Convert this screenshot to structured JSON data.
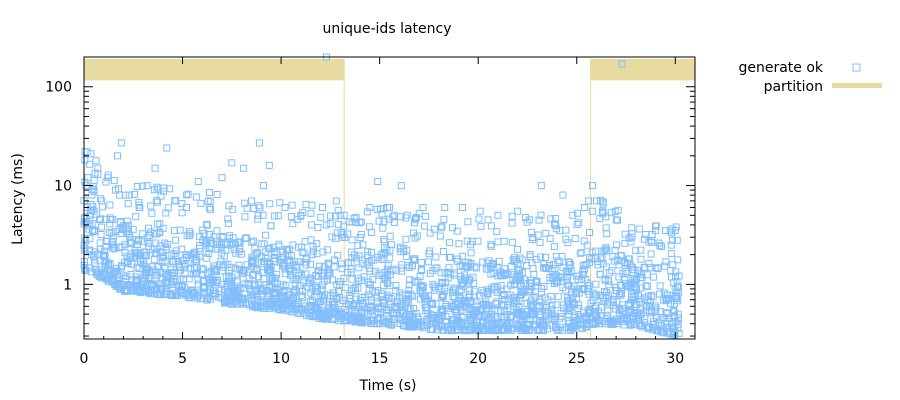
{
  "chart_data": {
    "type": "scatter",
    "title": "unique-ids latency",
    "xlabel": "Time (s)",
    "ylabel": "Latency (ms)",
    "xlim": [
      0,
      31
    ],
    "ylim": [
      0.28,
      200
    ],
    "yscale": "log",
    "xticks": [
      0,
      5,
      10,
      15,
      20,
      25,
      30
    ],
    "yticks": [
      1,
      10,
      100
    ],
    "grid": false,
    "legend_position": "top-right-outside",
    "series": [
      {
        "name": "generate ok",
        "marker": "hollow-square",
        "color": "#82BEFF",
        "points": [
          [
            0.05,
            22
          ],
          [
            0.1,
            10
          ],
          [
            0.15,
            6
          ],
          [
            0.2,
            12
          ],
          [
            0.3,
            5
          ],
          [
            0.4,
            8
          ],
          [
            0.5,
            9
          ],
          [
            0.7,
            15
          ],
          [
            0.9,
            7
          ],
          [
            1.2,
            12
          ],
          [
            1.6,
            9
          ],
          [
            1.7,
            20
          ],
          [
            1.9,
            27
          ],
          [
            2.3,
            8
          ],
          [
            2.8,
            6
          ],
          [
            3.2,
            10
          ],
          [
            3.6,
            15
          ],
          [
            4.2,
            24
          ],
          [
            4.6,
            7
          ],
          [
            5.2,
            6
          ],
          [
            5.8,
            11
          ],
          [
            6.3,
            7
          ],
          [
            7.0,
            12
          ],
          [
            7.5,
            17
          ],
          [
            8.1,
            15
          ],
          [
            8.5,
            7
          ],
          [
            8.9,
            27
          ],
          [
            9.1,
            10
          ],
          [
            9.4,
            16
          ],
          [
            10.2,
            6
          ],
          [
            11.0,
            5
          ],
          [
            12.1,
            6
          ],
          [
            12.3,
            4
          ],
          [
            12.8,
            7
          ],
          [
            13.0,
            5
          ],
          [
            13.2,
            5
          ],
          [
            13.6,
            4.3
          ],
          [
            14.0,
            4.2
          ],
          [
            14.5,
            6
          ],
          [
            14.9,
            11
          ],
          [
            15.5,
            6
          ],
          [
            16.1,
            10
          ],
          [
            16.4,
            5
          ],
          [
            16.8,
            4.5
          ],
          [
            17.2,
            6
          ],
          [
            18.3,
            6
          ],
          [
            19.2,
            6
          ],
          [
            20.1,
            5.5
          ],
          [
            20.5,
            4.5
          ],
          [
            21.0,
            5
          ],
          [
            22.0,
            5.5
          ],
          [
            22.6,
            4.5
          ],
          [
            23.2,
            10
          ],
          [
            24.3,
            8
          ],
          [
            24.8,
            5
          ],
          [
            25.1,
            4.2
          ],
          [
            25.4,
            6
          ],
          [
            25.6,
            7
          ],
          [
            25.8,
            10
          ],
          [
            26.0,
            7
          ],
          [
            26.3,
            5.5
          ],
          [
            27.0,
            4.5
          ],
          [
            27.8,
            3
          ],
          [
            28.5,
            3.2
          ],
          [
            29.0,
            3.5
          ],
          [
            29.5,
            3.5
          ],
          [
            29.8,
            2.5
          ],
          [
            30.0,
            3.5
          ],
          [
            30.1,
            2.8
          ],
          [
            12.3,
            200
          ],
          [
            27.3,
            170
          ]
        ]
      }
    ],
    "annotations": [
      {
        "name": "partition",
        "type": "interval",
        "x_start": 0,
        "x_end": 13.2,
        "color": "#E8DBA0"
      },
      {
        "name": "partition",
        "type": "interval",
        "x_start": 25.7,
        "x_end": 31.0,
        "color": "#E8DBA0"
      }
    ],
    "density": {
      "note_points": "upper envelope of dense cloud (upper) and lower edge (lower)",
      "anchors": [
        {
          "x": 0,
          "lower": 1.4,
          "upper": 9
        },
        {
          "x": 2,
          "lower": 0.85,
          "upper": 4
        },
        {
          "x": 5,
          "lower": 0.75,
          "upper": 3.5
        },
        {
          "x": 8,
          "lower": 0.6,
          "upper": 3.0
        },
        {
          "x": 10,
          "lower": 0.55,
          "upper": 2.6
        },
        {
          "x": 12,
          "lower": 0.45,
          "upper": 2.4
        },
        {
          "x": 13.3,
          "lower": 0.42,
          "upper": 2.2
        },
        {
          "x": 16,
          "lower": 0.38,
          "upper": 2.4
        },
        {
          "x": 18,
          "lower": 0.34,
          "upper": 1.9
        },
        {
          "x": 22,
          "lower": 0.34,
          "upper": 1.9
        },
        {
          "x": 25,
          "lower": 0.34,
          "upper": 2.0
        },
        {
          "x": 26,
          "lower": 0.4,
          "upper": 3.0
        },
        {
          "x": 28,
          "lower": 0.38,
          "upper": 1.6
        },
        {
          "x": 30,
          "lower": 0.3,
          "upper": 1.5
        }
      ]
    }
  }
}
